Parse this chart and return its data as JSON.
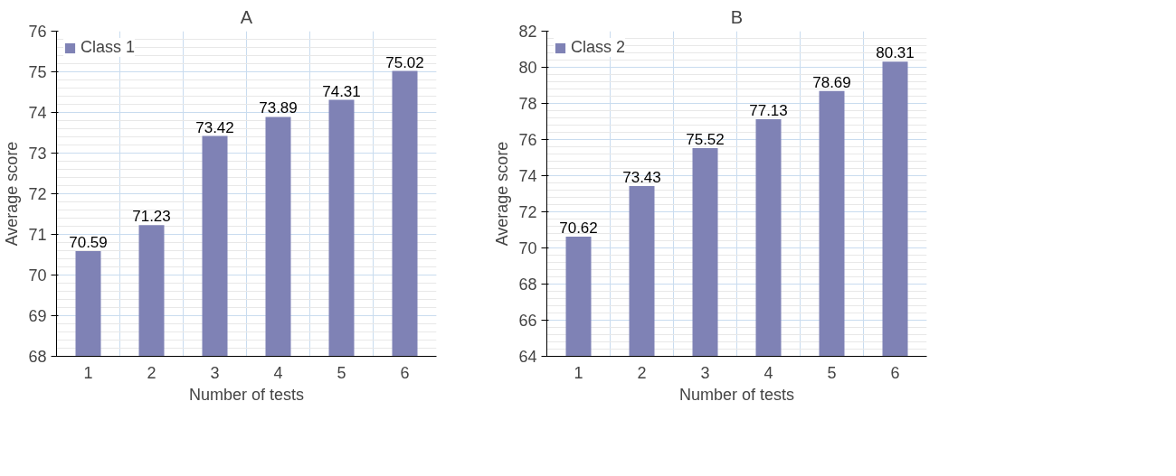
{
  "chart_data": [
    {
      "type": "bar",
      "title": "A",
      "xlabel": "Number of tests",
      "ylabel": "Average score",
      "categories": [
        "1",
        "2",
        "3",
        "4",
        "5",
        "6"
      ],
      "series": [
        {
          "name": "Class 1",
          "color": "#7f82b5",
          "values": [
            70.59,
            71.23,
            73.42,
            73.89,
            74.31,
            75.02
          ]
        }
      ],
      "ylim": [
        68,
        76
      ],
      "yticks": [
        68,
        69,
        70,
        71,
        72,
        73,
        74,
        75,
        76
      ],
      "grid": true,
      "legend": "top left",
      "data_labels": true
    },
    {
      "type": "bar",
      "title": "B",
      "xlabel": "Number of tests",
      "ylabel": "Average score",
      "categories": [
        "1",
        "2",
        "3",
        "4",
        "5",
        "6"
      ],
      "series": [
        {
          "name": "Class 2",
          "color": "#7f82b5",
          "values": [
            70.62,
            73.43,
            75.52,
            77.13,
            78.69,
            80.31
          ]
        }
      ],
      "ylim": [
        64,
        82
      ],
      "yticks": [
        64,
        66,
        68,
        70,
        72,
        74,
        76,
        78,
        80,
        82
      ],
      "grid": true,
      "legend": "top left",
      "data_labels": true
    }
  ]
}
